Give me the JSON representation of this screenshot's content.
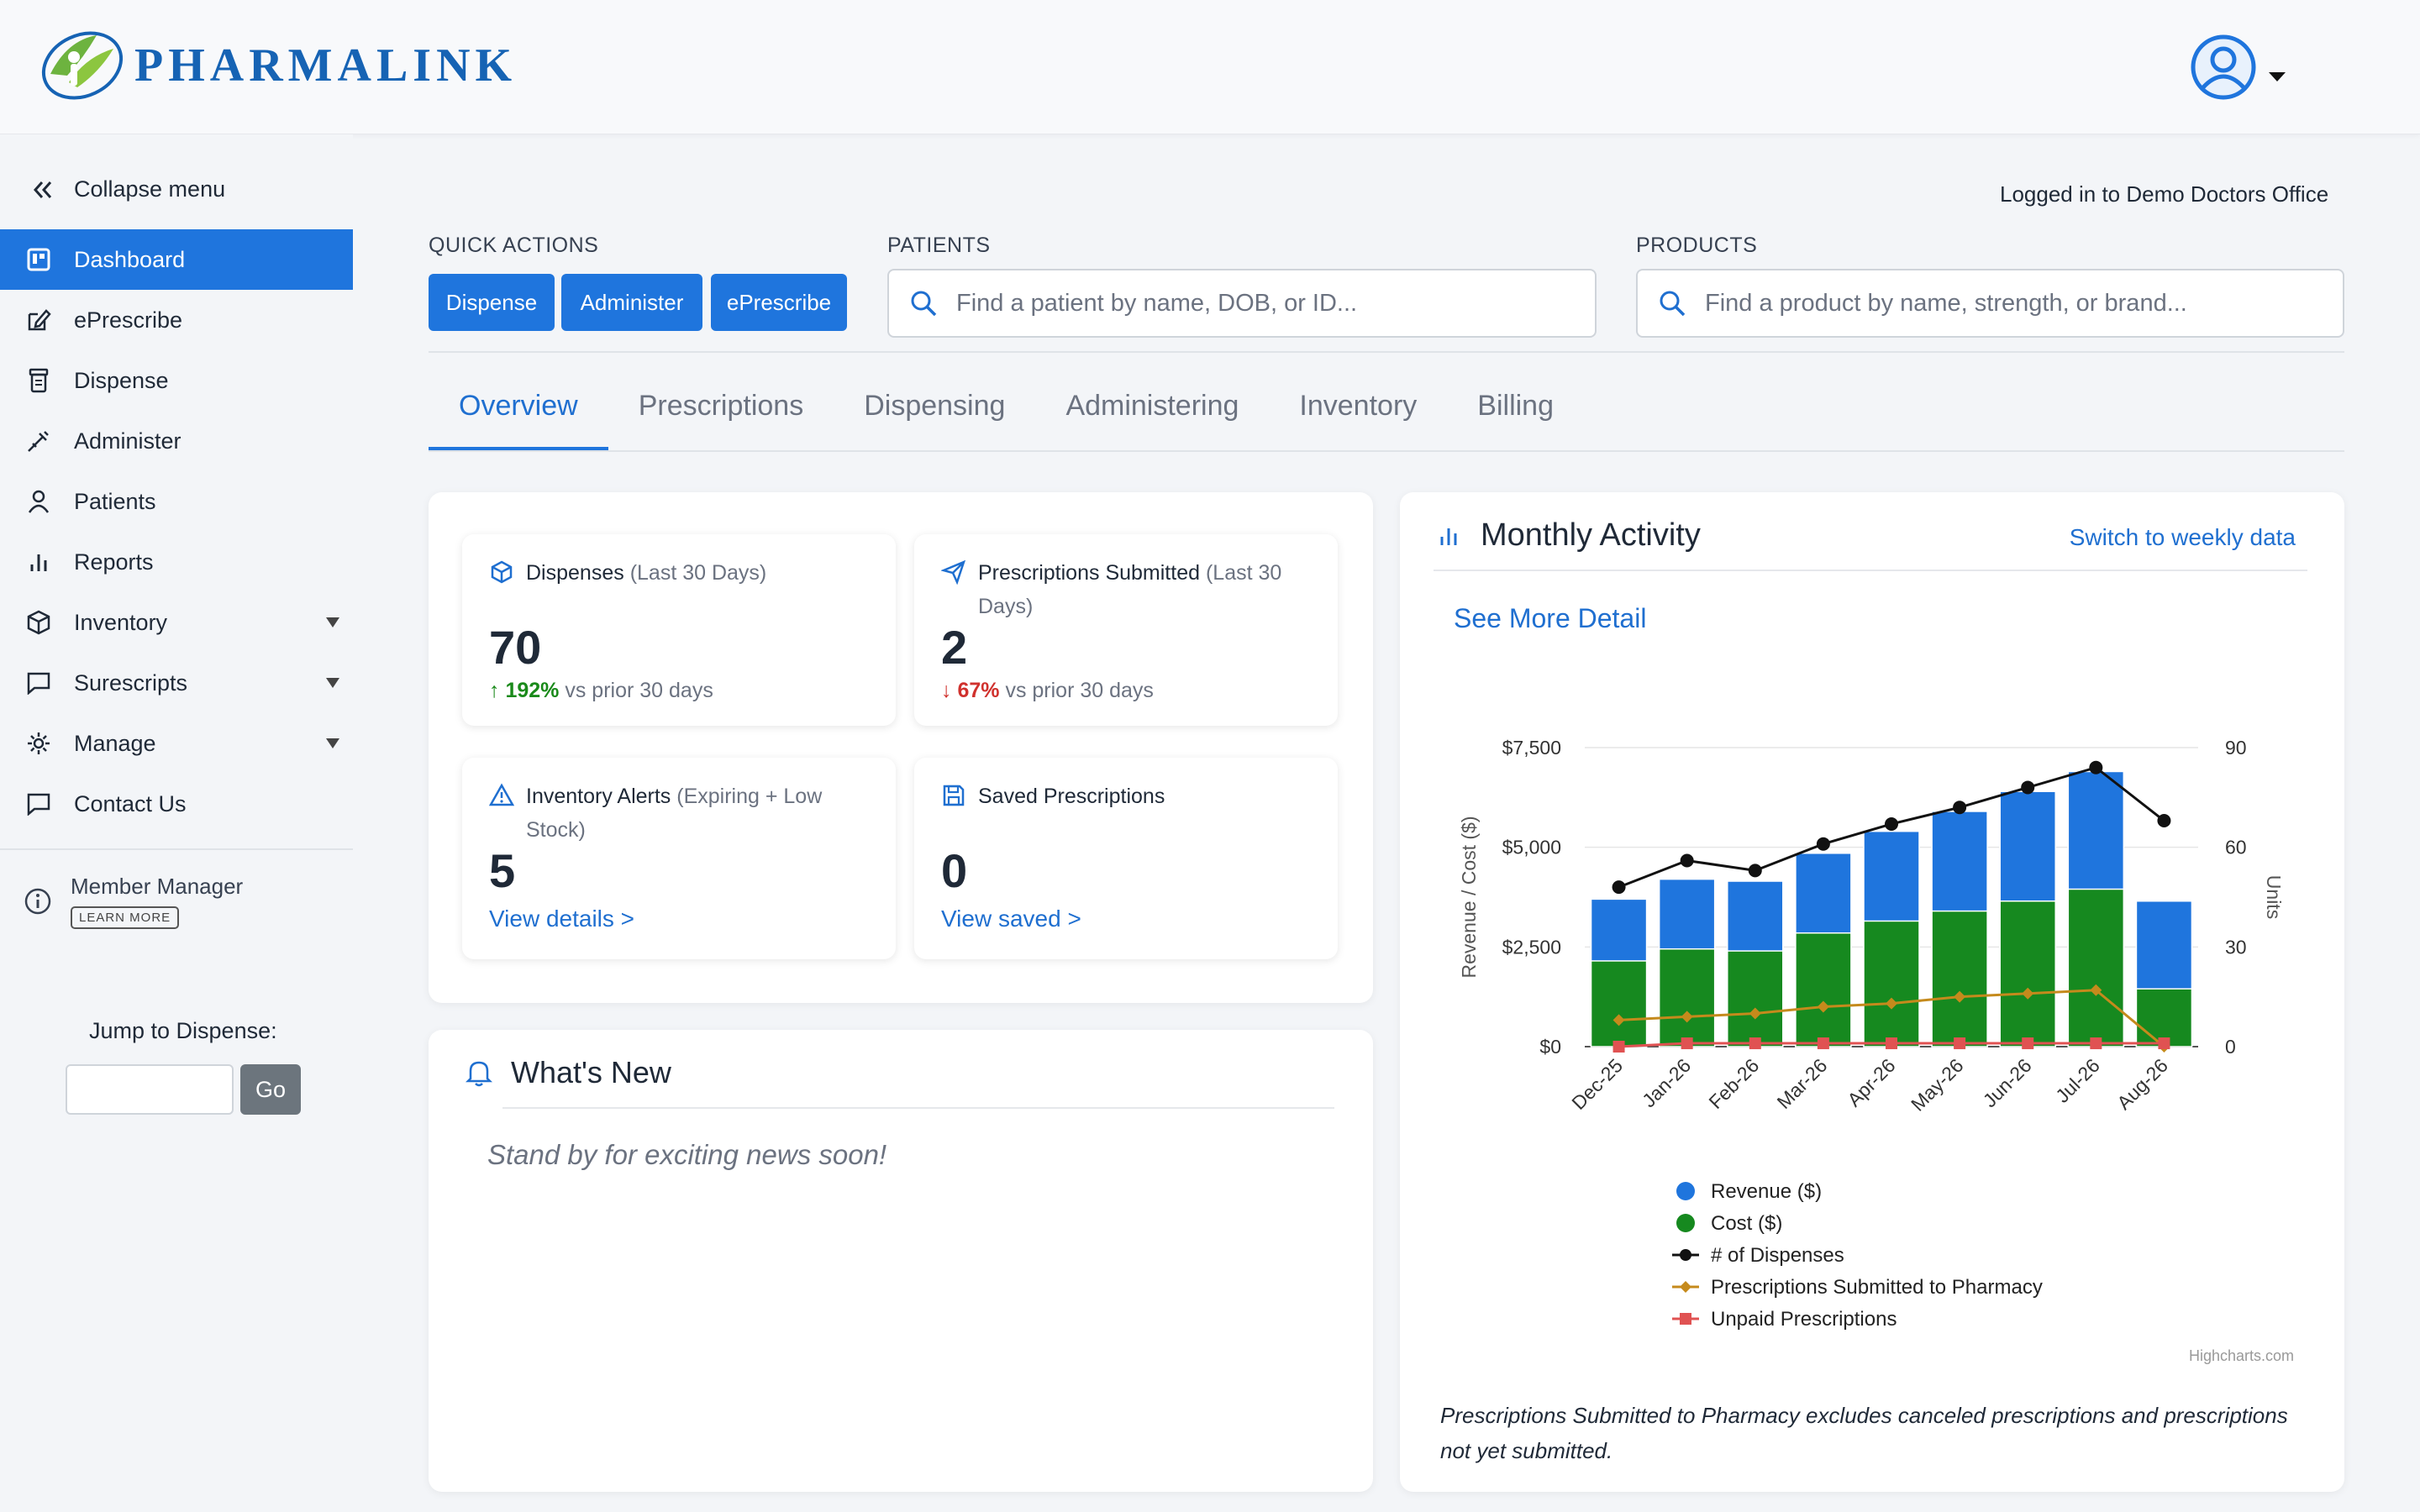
{
  "brand": {
    "name": "PHARMALINK"
  },
  "sidebar": {
    "collapse_label": "Collapse menu",
    "items": [
      {
        "label": "Dashboard",
        "icon": "dashboard-icon"
      },
      {
        "label": "ePrescribe",
        "icon": "edit-icon"
      },
      {
        "label": "Dispense",
        "icon": "pill-bottle-icon"
      },
      {
        "label": "Administer",
        "icon": "syringe-icon"
      },
      {
        "label": "Patients",
        "icon": "person-icon"
      },
      {
        "label": "Reports",
        "icon": "bar-chart-icon"
      },
      {
        "label": "Inventory",
        "icon": "box-icon"
      },
      {
        "label": "Surescripts",
        "icon": "chat-icon"
      },
      {
        "label": "Manage",
        "icon": "gear-icon"
      },
      {
        "label": "Contact Us",
        "icon": "message-icon"
      }
    ],
    "member_manager": "Member Manager",
    "learn_more": "LEARN MORE",
    "jump_label": "Jump to Dispense:",
    "go_label": "Go"
  },
  "header": {
    "logged_in": "Logged in to Demo Doctors Office"
  },
  "quick_actions": {
    "label": "QUICK ACTIONS",
    "buttons": [
      "Dispense",
      "Administer",
      "ePrescribe"
    ]
  },
  "patients": {
    "label": "PATIENTS",
    "placeholder": "Find a patient by name, DOB, or ID..."
  },
  "products": {
    "label": "PRODUCTS",
    "placeholder": "Find a product by name, strength, or brand..."
  },
  "tabs": [
    "Overview",
    "Prescriptions",
    "Dispensing",
    "Administering",
    "Inventory",
    "Billing"
  ],
  "stats": {
    "dispenses": {
      "title": "Dispenses",
      "sub": "(Last 30 Days)",
      "value": "70",
      "change_arrow": "↑",
      "change_pct": "192%",
      "change_text": "vs prior 30 days"
    },
    "prescriptions": {
      "title": "Prescriptions Submitted",
      "sub": "(Last 30 Days)",
      "value": "2",
      "change_arrow": "↓",
      "change_pct": "67%",
      "change_text": "vs prior 30 days"
    },
    "inventory": {
      "title": "Inventory Alerts",
      "sub": "(Expiring + Low Stock)",
      "value": "5",
      "link": "View details >"
    },
    "saved": {
      "title": "Saved Prescriptions",
      "value": "0",
      "link": "View saved >"
    }
  },
  "news": {
    "title": "What's New",
    "text": "Stand by for exciting news soon!"
  },
  "monthly": {
    "title": "Monthly Activity",
    "switch_link": "Switch to weekly data",
    "see_more": "See More Detail",
    "credit": "Highcharts.com",
    "footnote": "Prescriptions Submitted to Pharmacy excludes canceled prescriptions and prescriptions not yet submitted."
  },
  "chart_data": {
    "type": "bar",
    "categories": [
      "Dec-25",
      "Jan-26",
      "Feb-26",
      "Mar-26",
      "Apr-26",
      "May-26",
      "Jun-26",
      "Jul-26",
      "Aug-26"
    ],
    "ylabel": "Revenue / Cost ($)",
    "y2label": "Units",
    "ylim": [
      0,
      7500
    ],
    "y2lim": [
      0,
      90
    ],
    "yticks": [
      "$0",
      "$2,500",
      "$5,000",
      "$7,500"
    ],
    "y2ticks": [
      "0",
      "30",
      "60",
      "90"
    ],
    "legend_position": "bottom",
    "series": [
      {
        "name": "Revenue ($)",
        "type": "bar",
        "axis": "left",
        "color": "#1f75dd",
        "values": [
          3700,
          4200,
          4150,
          4850,
          5400,
          5900,
          6400,
          6900,
          3650
        ]
      },
      {
        "name": "Cost ($)",
        "type": "bar",
        "axis": "left",
        "color": "#16891f",
        "values": [
          2150,
          2450,
          2400,
          2850,
          3150,
          3400,
          3650,
          3950,
          1450
        ]
      },
      {
        "name": "# of Dispenses",
        "type": "line",
        "axis": "right",
        "color": "#111111",
        "values": [
          48,
          56,
          53,
          61,
          67,
          72,
          78,
          84,
          68
        ]
      },
      {
        "name": "Prescriptions Submitted to Pharmacy",
        "type": "line",
        "axis": "right",
        "color": "#c58a1c",
        "values": [
          8,
          9,
          10,
          12,
          13,
          15,
          16,
          17,
          0
        ]
      },
      {
        "name": "Unpaid Prescriptions",
        "type": "line",
        "axis": "right",
        "color": "#e05252",
        "values": [
          0,
          1,
          1,
          1,
          1,
          1,
          1,
          1,
          1
        ]
      }
    ]
  }
}
